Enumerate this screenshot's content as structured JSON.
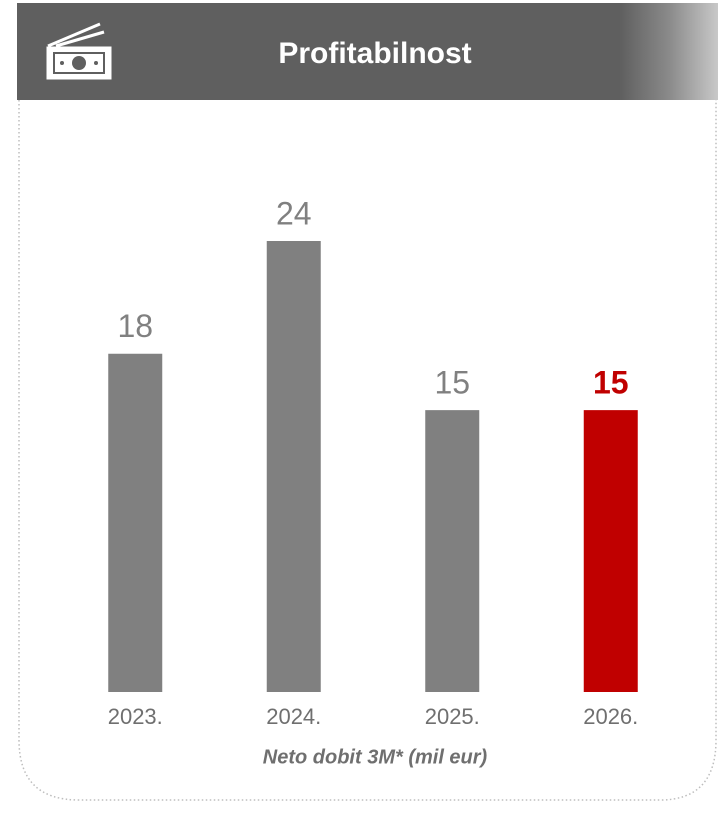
{
  "chart_data": {
    "type": "bar",
    "title": "Profitabilnost",
    "categories": [
      "2023.",
      "2024.",
      "2025.",
      "2026."
    ],
    "values": [
      18,
      24,
      15,
      15
    ],
    "colors": [
      "#808080",
      "#808080",
      "#808080",
      "#c00000"
    ],
    "bold_value_labels": [
      false,
      false,
      false,
      true
    ],
    "ylim": [
      0,
      24
    ],
    "footnote": "Neto dobit  3M* (mil eur)"
  }
}
